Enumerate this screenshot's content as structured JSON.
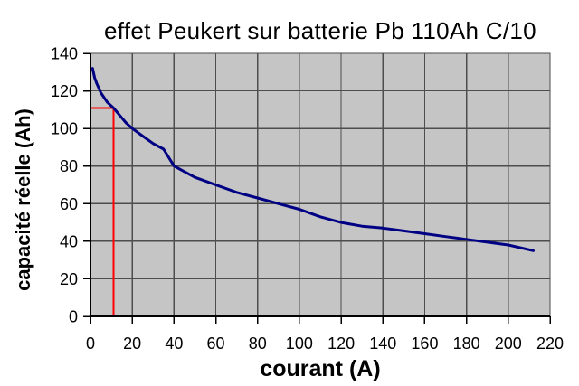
{
  "figure": {
    "background": "#ffffff"
  },
  "chart_data": {
    "type": "line",
    "title": "effet Peukert sur batterie Pb 110Ah C/10",
    "xlabel": "courant (A)",
    "ylabel": "capacité réelle (Ah)",
    "xlim": [
      0,
      220
    ],
    "ylim": [
      0,
      140
    ],
    "xticks": [
      0,
      20,
      40,
      60,
      80,
      100,
      120,
      140,
      160,
      180,
      200,
      220
    ],
    "yticks": [
      0,
      20,
      40,
      60,
      80,
      100,
      120,
      140
    ],
    "grid": true,
    "legend": false,
    "colors": {
      "plot_bg": "#c5c5c5",
      "grid": "#4d4d4d",
      "axis": "#000000",
      "curve": "#000084",
      "reference": "#ff0000"
    },
    "series": [
      {
        "color": "#000084",
        "points": [
          [
            1,
            132
          ],
          [
            2,
            127
          ],
          [
            3,
            124
          ],
          [
            5,
            119
          ],
          [
            8,
            114
          ],
          [
            11,
            111
          ],
          [
            14,
            107
          ],
          [
            17,
            103
          ],
          [
            20,
            100
          ],
          [
            25,
            96
          ],
          [
            30,
            92
          ],
          [
            35,
            89
          ],
          [
            40,
            80
          ],
          [
            45,
            77
          ],
          [
            50,
            74
          ],
          [
            55,
            72
          ],
          [
            60,
            70
          ],
          [
            70,
            66
          ],
          [
            80,
            63
          ],
          [
            90,
            60
          ],
          [
            100,
            57
          ],
          [
            110,
            53
          ],
          [
            120,
            50
          ],
          [
            130,
            48
          ],
          [
            140,
            47
          ],
          [
            150,
            45.5
          ],
          [
            160,
            44
          ],
          [
            170,
            42.5
          ],
          [
            180,
            41
          ],
          [
            190,
            39.5
          ],
          [
            200,
            38
          ],
          [
            212,
            35
          ]
        ]
      }
    ],
    "reference_lines": {
      "x": 11,
      "y": 111,
      "color": "#ff0000"
    }
  }
}
